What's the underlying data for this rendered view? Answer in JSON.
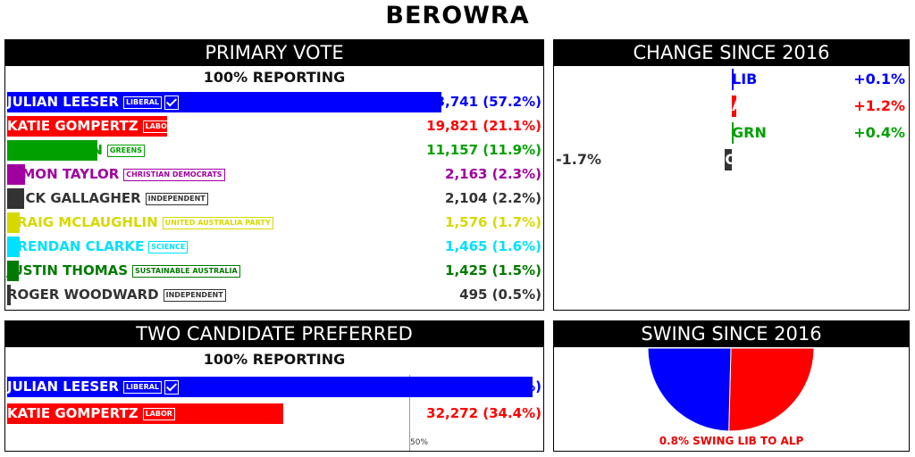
{
  "title": "BEROWRA",
  "colors": {
    "lib": "#0000ff",
    "alp": "#ff0000",
    "grn": "#00a000",
    "cdp": "#a000a0",
    "ind": "#333333",
    "uap": "#d8d800",
    "sci": "#00e0ff",
    "sus": "#007a00"
  },
  "primary": {
    "heading": "PRIMARY VOTE",
    "reporting": "100% REPORTING",
    "rows": [
      {
        "name": "JULIAN LEESER",
        "party": "LIBERAL",
        "votes": "53,741 (57.2%)",
        "pct": 57.2,
        "color": "#0000ff",
        "winner": true
      },
      {
        "name": "KATIE GOMPERTZ",
        "party": "LABOR",
        "votes": "19,821 (21.1%)",
        "pct": 21.1,
        "color": "#ff0000",
        "winner": false
      },
      {
        "name": "MONICA TAN",
        "party": "GREENS",
        "votes": "11,157 (11.9%)",
        "pct": 11.9,
        "color": "#00a000",
        "winner": false
      },
      {
        "name": "SIMON TAYLOR",
        "party": "CHRISTIAN DEMOCRATS",
        "votes": "2,163 (2.3%)",
        "pct": 2.3,
        "color": "#a000a0",
        "winner": false
      },
      {
        "name": "MICK GALLAGHER",
        "party": "INDEPENDENT",
        "votes": "2,104 (2.2%)",
        "pct": 2.2,
        "color": "#333333",
        "winner": false
      },
      {
        "name": "CRAIG MCLAUGHLIN",
        "party": "UNITED AUSTRALIA PARTY",
        "votes": "1,576 (1.7%)",
        "pct": 1.7,
        "color": "#d8d800",
        "winner": false
      },
      {
        "name": "BRENDAN CLARKE",
        "party": "SCIENCE",
        "votes": "1,465 (1.6%)",
        "pct": 1.6,
        "color": "#00e0ff",
        "winner": false
      },
      {
        "name": "JUSTIN THOMAS",
        "party": "SUSTAINABLE AUSTRALIA",
        "votes": "1,425 (1.5%)",
        "pct": 1.5,
        "color": "#007a00",
        "winner": false
      },
      {
        "name": "ROGER WOODWARD",
        "party": "INDEPENDENT",
        "votes": "495 (0.5%)",
        "pct": 0.5,
        "color": "#333333",
        "winner": false
      }
    ]
  },
  "change": {
    "heading": "CHANGE SINCE 2016",
    "rows": [
      {
        "label": "LIB",
        "value": 0.1,
        "text": "+0.1%",
        "color": "#0000ff",
        "label_style": "plain"
      },
      {
        "label": "ALP",
        "value": 1.2,
        "text": "+1.2%",
        "color": "#ff0000",
        "label_style": "plain"
      },
      {
        "label": "GRN",
        "value": 0.4,
        "text": "+0.4%",
        "color": "#00a000",
        "label_style": "plain"
      },
      {
        "label": "OTH",
        "value": -1.7,
        "text": "-1.7%",
        "color": "#333333",
        "label_style": "box"
      }
    ]
  },
  "tcp": {
    "heading": "TWO CANDIDATE PREFERRED",
    "reporting": "100% REPORTING",
    "midline_label": "50%",
    "rows": [
      {
        "name": "JULIAN LEESER",
        "party": "LIBERAL",
        "votes": "61,675 (65.6%)",
        "pct": 65.6,
        "color": "#0000ff",
        "winner": true
      },
      {
        "name": "KATIE GOMPERTZ",
        "party": "LABOR",
        "votes": "32,272 (34.4%)",
        "pct": 34.4,
        "color": "#ff0000",
        "winner": false
      }
    ]
  },
  "swing": {
    "heading": "SWING SINCE 2016",
    "caption": "0.8% SWING LIB TO ALP",
    "lib_share": 49.2,
    "alp_share": 50.8
  },
  "chart_data": [
    {
      "type": "bar",
      "title": "PRIMARY VOTE",
      "categories": [
        "JULIAN LEESER",
        "KATIE GOMPERTZ",
        "MONICA TAN",
        "SIMON TAYLOR",
        "MICK GALLAGHER",
        "CRAIG MCLAUGHLIN",
        "BRENDAN CLARKE",
        "JUSTIN THOMAS",
        "ROGER WOODWARD"
      ],
      "values": [
        57.2,
        21.1,
        11.9,
        2.3,
        2.2,
        1.7,
        1.6,
        1.5,
        0.5
      ],
      "votes": [
        53741,
        19821,
        11157,
        2163,
        2104,
        1576,
        1465,
        1425,
        495
      ]
    },
    {
      "type": "bar",
      "title": "CHANGE SINCE 2016",
      "categories": [
        "LIB",
        "ALP",
        "GRN",
        "OTH"
      ],
      "values": [
        0.1,
        1.2,
        0.4,
        -1.7
      ]
    },
    {
      "type": "bar",
      "title": "TWO CANDIDATE PREFERRED",
      "categories": [
        "JULIAN LEESER",
        "KATIE GOMPERTZ"
      ],
      "values": [
        65.6,
        34.4
      ],
      "votes": [
        61675,
        32272
      ]
    },
    {
      "type": "pie",
      "title": "SWING SINCE 2016",
      "categories": [
        "LIB",
        "ALP"
      ],
      "values": [
        49.2,
        50.8
      ]
    }
  ]
}
